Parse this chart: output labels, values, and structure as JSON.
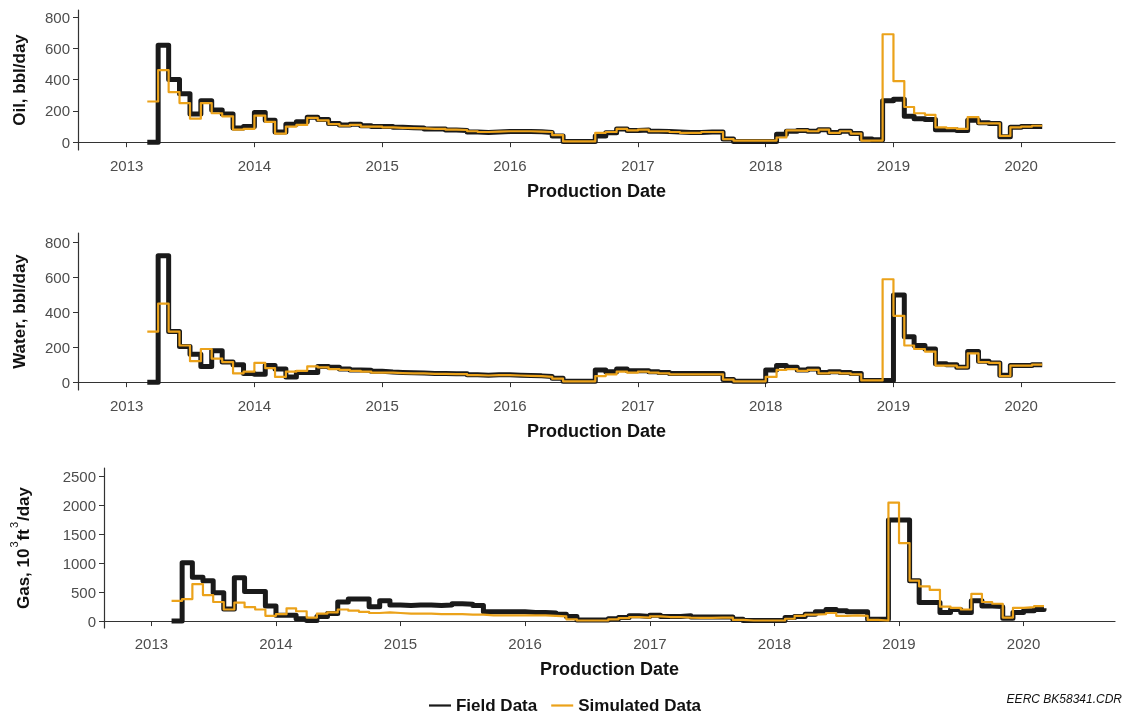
{
  "chart_data": [
    {
      "type": "step",
      "xlabel": "Production Date",
      "ylabel": "Oil, bbl/day",
      "xlim": [
        "2012-08-15",
        "2020-09-25"
      ],
      "xticks": [
        "2013",
        "2014",
        "2015",
        "2016",
        "2017",
        "2018",
        "2019",
        "2020"
      ],
      "ylim": [
        -50,
        845
      ],
      "yticks": [
        0,
        200,
        400,
        600,
        800
      ],
      "x": [
        "2013-03",
        "2013-04",
        "2013-05",
        "2013-06",
        "2013-07",
        "2013-08",
        "2013-09",
        "2013-10",
        "2013-11",
        "2013-12",
        "2014-01",
        "2014-02",
        "2014-03",
        "2014-04",
        "2014-05",
        "2014-06",
        "2014-07",
        "2014-08",
        "2014-09",
        "2014-10",
        "2014-11",
        "2014-12",
        "2015-01",
        "2015-02",
        "2015-03",
        "2015-04",
        "2015-05",
        "2015-06",
        "2015-07",
        "2015-08",
        "2015-09",
        "2015-10",
        "2015-11",
        "2015-12",
        "2016-01",
        "2016-02",
        "2016-03",
        "2016-04",
        "2016-05",
        "2016-06",
        "2016-07",
        "2016-08",
        "2016-09",
        "2016-10",
        "2016-11",
        "2016-12",
        "2017-01",
        "2017-02",
        "2017-03",
        "2017-04",
        "2017-05",
        "2017-06",
        "2017-07",
        "2017-08",
        "2017-09",
        "2017-10",
        "2017-11",
        "2017-12",
        "2018-01",
        "2018-02",
        "2018-03",
        "2018-04",
        "2018-05",
        "2018-06",
        "2018-07",
        "2018-08",
        "2018-09",
        "2018-10",
        "2018-11",
        "2018-12",
        "2019-01",
        "2019-02",
        "2019-03",
        "2019-04",
        "2019-05",
        "2019-06",
        "2019-07",
        "2019-08",
        "2019-09",
        "2019-10",
        "2019-11",
        "2019-12",
        "2020-01",
        "2020-02",
        "2020-03"
      ],
      "series": [
        {
          "color": "#1a1a1a",
          "values": [
            0,
            620,
            400,
            310,
            180,
            265,
            205,
            180,
            90,
            100,
            190,
            140,
            65,
            115,
            130,
            160,
            145,
            120,
            110,
            115,
            105,
            100,
            100,
            95,
            92,
            90,
            85,
            85,
            78,
            75,
            65,
            62,
            65,
            68,
            68,
            68,
            66,
            62,
            40,
            5,
            5,
            5,
            40,
            60,
            85,
            75,
            78,
            70,
            68,
            65,
            62,
            62,
            65,
            65,
            20,
            5,
            5,
            5,
            5,
            50,
            70,
            75,
            70,
            80,
            62,
            70,
            55,
            20,
            15,
            265,
            275,
            165,
            150,
            145,
            80,
            80,
            75,
            140,
            125,
            120,
            35,
            95,
            100,
            100,
            100
          ]
        },
        {
          "color": "#eba21a",
          "values": [
            260,
            460,
            320,
            250,
            150,
            250,
            185,
            165,
            80,
            85,
            170,
            130,
            55,
            100,
            110,
            155,
            140,
            115,
            105,
            110,
            100,
            100,
            95,
            92,
            90,
            88,
            85,
            85,
            80,
            78,
            70,
            65,
            68,
            70,
            70,
            70,
            68,
            65,
            45,
            5,
            5,
            5,
            60,
            65,
            85,
            75,
            80,
            70,
            70,
            65,
            60,
            60,
            65,
            65,
            20,
            10,
            10,
            10,
            10,
            30,
            75,
            75,
            70,
            80,
            60,
            70,
            55,
            10,
            10,
            690,
            390,
            225,
            185,
            175,
            95,
            90,
            85,
            160,
            120,
            120,
            40,
            95,
            100,
            105,
            105
          ]
        }
      ]
    },
    {
      "type": "step",
      "xlabel": "Production Date",
      "ylabel": "Water, bbl/day",
      "xlim": [
        "2012-08-15",
        "2020-09-25"
      ],
      "xticks": [
        "2013",
        "2014",
        "2015",
        "2016",
        "2017",
        "2018",
        "2019",
        "2020"
      ],
      "ylim": [
        -45,
        855
      ],
      "yticks": [
        0,
        200,
        400,
        600,
        800
      ],
      "x": [
        "2013-03",
        "2013-04",
        "2013-05",
        "2013-06",
        "2013-07",
        "2013-08",
        "2013-09",
        "2013-10",
        "2013-11",
        "2013-12",
        "2014-01",
        "2014-02",
        "2014-03",
        "2014-04",
        "2014-05",
        "2014-06",
        "2014-07",
        "2014-08",
        "2014-09",
        "2014-10",
        "2014-11",
        "2014-12",
        "2015-01",
        "2015-02",
        "2015-03",
        "2015-04",
        "2015-05",
        "2015-06",
        "2015-07",
        "2015-08",
        "2015-09",
        "2015-10",
        "2015-11",
        "2015-12",
        "2016-01",
        "2016-02",
        "2016-03",
        "2016-04",
        "2016-05",
        "2016-06",
        "2016-07",
        "2016-08",
        "2016-09",
        "2016-10",
        "2016-11",
        "2016-12",
        "2017-01",
        "2017-02",
        "2017-03",
        "2017-04",
        "2017-05",
        "2017-06",
        "2017-07",
        "2017-08",
        "2017-09",
        "2017-10",
        "2017-11",
        "2017-12",
        "2018-01",
        "2018-02",
        "2018-03",
        "2018-04",
        "2018-05",
        "2018-06",
        "2018-07",
        "2018-08",
        "2018-09",
        "2018-10",
        "2018-11",
        "2018-12",
        "2019-01",
        "2019-02",
        "2019-03",
        "2019-04",
        "2019-05",
        "2019-06",
        "2019-07",
        "2019-08",
        "2019-09",
        "2019-10",
        "2019-11",
        "2019-12",
        "2020-01",
        "2020-02",
        "2020-03"
      ],
      "series": [
        {
          "color": "#1a1a1a",
          "values": [
            0,
            725,
            290,
            205,
            160,
            90,
            180,
            115,
            100,
            50,
            45,
            95,
            75,
            30,
            55,
            55,
            90,
            85,
            75,
            70,
            68,
            62,
            58,
            56,
            54,
            52,
            50,
            50,
            48,
            48,
            42,
            40,
            42,
            42,
            40,
            38,
            36,
            32,
            22,
            5,
            5,
            5,
            70,
            60,
            75,
            65,
            65,
            60,
            55,
            50,
            50,
            50,
            50,
            50,
            15,
            5,
            5,
            5,
            70,
            95,
            85,
            70,
            75,
            55,
            60,
            55,
            50,
            10,
            10,
            10,
            500,
            260,
            210,
            190,
            105,
            100,
            85,
            175,
            120,
            110,
            40,
            95,
            95,
            100,
            100
          ]
        },
        {
          "color": "#eba21a",
          "values": [
            290,
            450,
            290,
            210,
            120,
            190,
            135,
            115,
            50,
            60,
            110,
            80,
            30,
            60,
            65,
            90,
            85,
            75,
            70,
            65,
            60,
            55,
            55,
            52,
            50,
            50,
            48,
            48,
            46,
            46,
            40,
            38,
            40,
            40,
            38,
            36,
            34,
            30,
            20,
            5,
            5,
            5,
            35,
            45,
            60,
            55,
            60,
            55,
            50,
            45,
            45,
            45,
            45,
            45,
            15,
            5,
            5,
            5,
            30,
            70,
            75,
            65,
            70,
            50,
            55,
            50,
            45,
            10,
            10,
            590,
            380,
            210,
            190,
            175,
            95,
            95,
            85,
            165,
            115,
            110,
            35,
            95,
            95,
            100,
            100
          ]
        }
      ]
    },
    {
      "type": "step",
      "xlabel": "Production Date",
      "ylabel": "Gas, 10$^{3}$ft$^{3}$/day",
      "xlim": [
        "2012-08-15",
        "2020-09-25"
      ],
      "xticks": [
        "2013",
        "2014",
        "2015",
        "2016",
        "2017",
        "2018",
        "2019",
        "2020"
      ],
      "ylim": [
        -120,
        2650
      ],
      "yticks": [
        0,
        500,
        1000,
        1500,
        2000,
        2500
      ],
      "legend": "bottom",
      "annotations": [
        "EERC BK58341.CDR"
      ],
      "x": [
        "2013-03",
        "2013-04",
        "2013-05",
        "2013-06",
        "2013-07",
        "2013-08",
        "2013-09",
        "2013-10",
        "2013-11",
        "2013-12",
        "2014-01",
        "2014-02",
        "2014-03",
        "2014-04",
        "2014-05",
        "2014-06",
        "2014-07",
        "2014-08",
        "2014-09",
        "2014-10",
        "2014-11",
        "2014-12",
        "2015-01",
        "2015-02",
        "2015-03",
        "2015-04",
        "2015-05",
        "2015-06",
        "2015-07",
        "2015-08",
        "2015-09",
        "2015-10",
        "2015-11",
        "2015-12",
        "2016-01",
        "2016-02",
        "2016-03",
        "2016-04",
        "2016-05",
        "2016-06",
        "2016-07",
        "2016-08",
        "2016-09",
        "2016-10",
        "2016-11",
        "2016-12",
        "2017-01",
        "2017-02",
        "2017-03",
        "2017-04",
        "2017-05",
        "2017-06",
        "2017-07",
        "2017-08",
        "2017-09",
        "2017-10",
        "2017-11",
        "2017-12",
        "2018-01",
        "2018-02",
        "2018-03",
        "2018-04",
        "2018-05",
        "2018-06",
        "2018-07",
        "2018-08",
        "2018-09",
        "2018-10",
        "2018-11",
        "2018-12",
        "2019-01",
        "2019-02",
        "2019-03",
        "2019-04",
        "2019-05",
        "2019-06",
        "2019-07",
        "2019-08",
        "2019-09",
        "2019-10",
        "2019-11",
        "2019-12",
        "2020-01",
        "2020-02",
        "2020-03"
      ],
      "series": [
        {
          "name": "Field Data",
          "color": "#1a1a1a",
          "values": [
            0,
            1010,
            760,
            700,
            490,
            210,
            750,
            510,
            510,
            260,
            100,
            100,
            40,
            10,
            80,
            130,
            330,
            380,
            380,
            250,
            350,
            280,
            270,
            280,
            280,
            270,
            280,
            300,
            290,
            270,
            160,
            160,
            160,
            160,
            150,
            150,
            140,
            120,
            80,
            20,
            20,
            20,
            40,
            60,
            90,
            80,
            100,
            80,
            80,
            90,
            70,
            70,
            70,
            70,
            30,
            10,
            10,
            10,
            10,
            60,
            80,
            120,
            160,
            200,
            180,
            160,
            160,
            30,
            30,
            1750,
            1750,
            700,
            320,
            320,
            150,
            200,
            150,
            350,
            260,
            250,
            50,
            150,
            180,
            200,
            220
          ]
        },
        {
          "name": "Simulated Data",
          "color": "#eba21a",
          "values": [
            350,
            380,
            640,
            450,
            330,
            200,
            320,
            240,
            200,
            90,
            120,
            220,
            170,
            60,
            130,
            150,
            200,
            180,
            160,
            140,
            150,
            140,
            130,
            130,
            130,
            120,
            120,
            120,
            110,
            110,
            100,
            100,
            100,
            100,
            100,
            100,
            90,
            80,
            30,
            10,
            10,
            10,
            30,
            50,
            70,
            60,
            80,
            70,
            70,
            60,
            55,
            55,
            60,
            60,
            20,
            10,
            10,
            10,
            10,
            40,
            90,
            110,
            120,
            140,
            90,
            100,
            90,
            20,
            10,
            2050,
            1350,
            700,
            600,
            540,
            250,
            230,
            200,
            470,
            330,
            300,
            60,
            230,
            240,
            260,
            260
          ]
        }
      ]
    }
  ]
}
